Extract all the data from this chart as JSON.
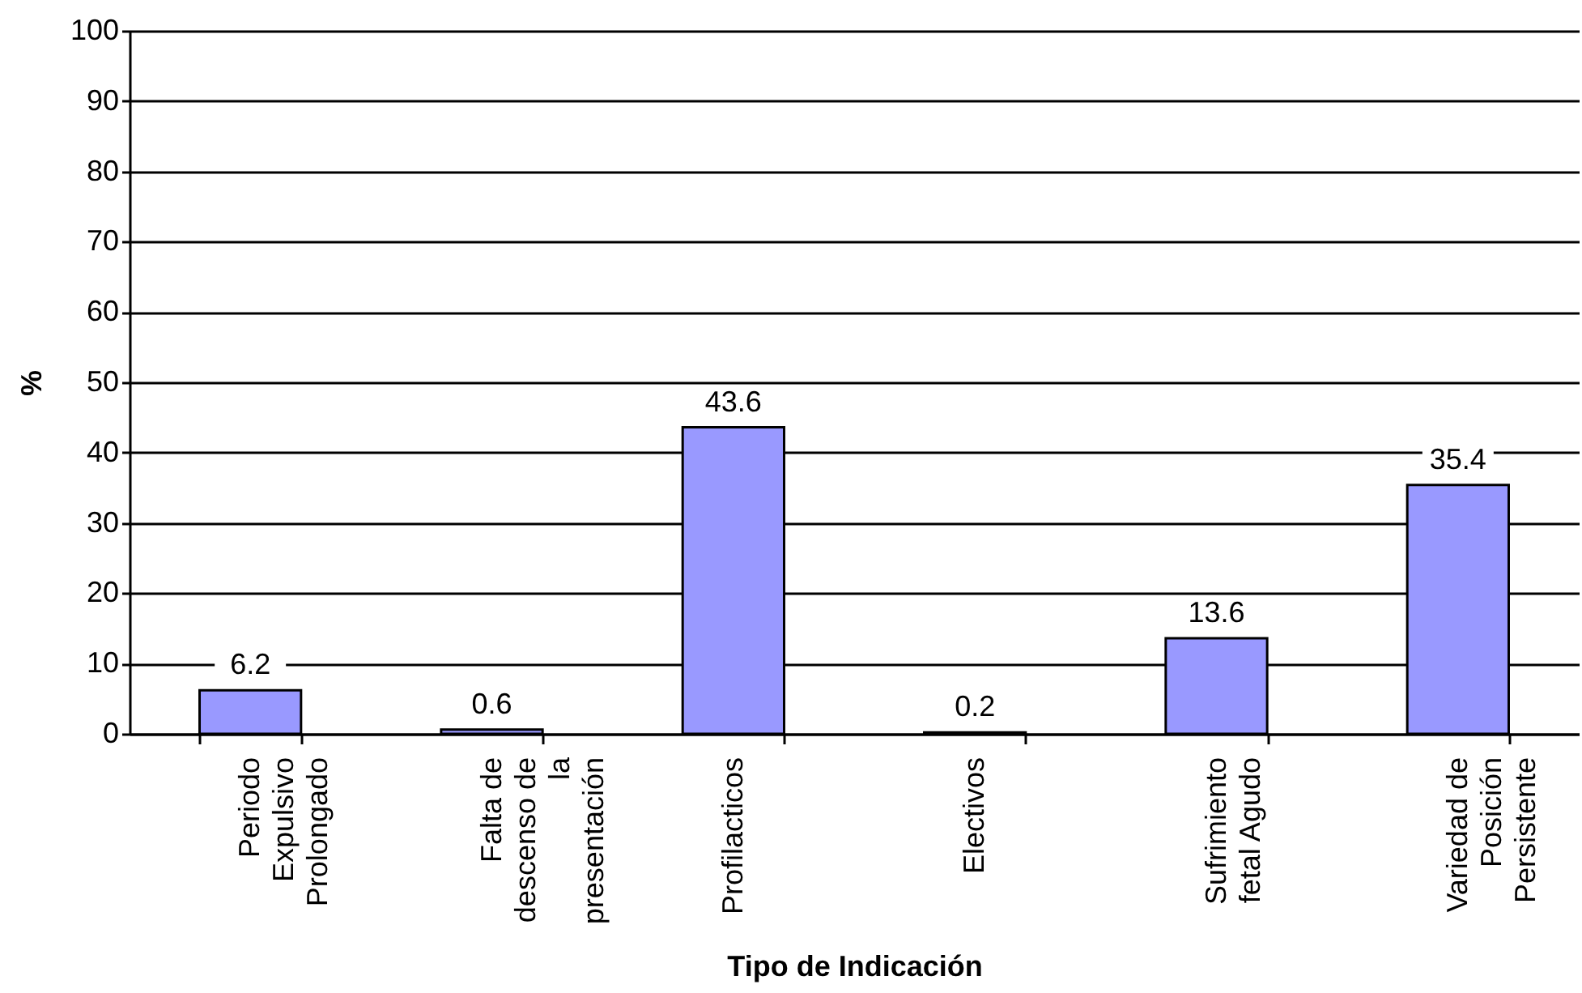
{
  "chart_data": {
    "type": "bar",
    "xlabel": "Tipo de Indicación",
    "ylabel": "%",
    "categories": [
      "Periodo Expulsivo Prolongado",
      "Falta de descenso de la presentación",
      "Profilacticos",
      "Electivos",
      "Sufrimiento fetal Agudo",
      "Variedad de Posición Persistente"
    ],
    "values": [
      6.2,
      0.6,
      43.6,
      0.2,
      13.6,
      35.4
    ],
    "color": "#9999ff",
    "ylim": [
      0,
      100
    ],
    "yticks": [
      0,
      10,
      20,
      30,
      40,
      50,
      60,
      70,
      80,
      90,
      100
    ],
    "grid": "y",
    "data_labels": true
  }
}
